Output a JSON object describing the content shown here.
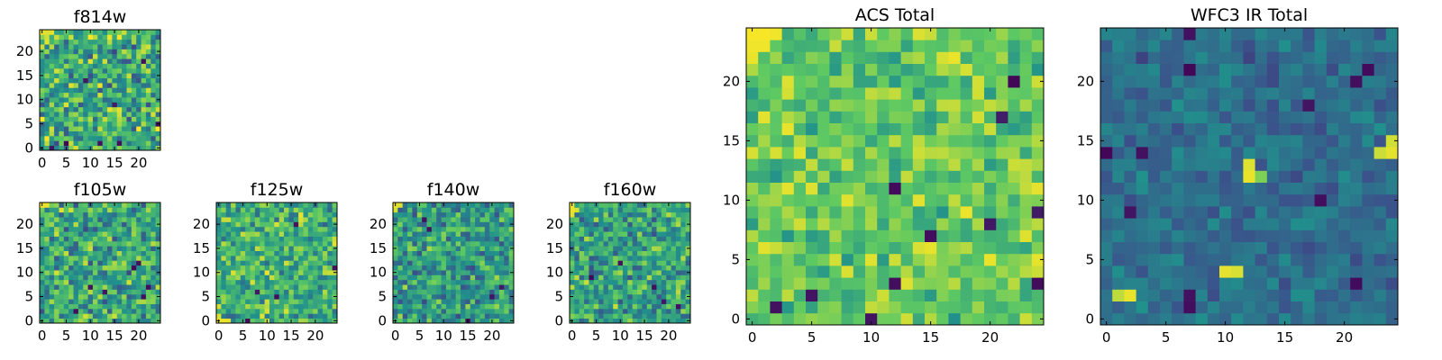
{
  "figure": {
    "colormap": "viridis",
    "colors": {
      "low": "#440154",
      "mid_low": "#3b528b",
      "mid": "#21918c",
      "mid_high": "#5ec962",
      "high": "#fde725"
    }
  },
  "chart_data": [
    {
      "type": "heatmap",
      "key": "f814w",
      "title": "f814w",
      "grid_size": [
        25,
        25
      ],
      "xlim": [
        0,
        25
      ],
      "ylim": [
        0,
        25
      ],
      "xticks": [
        0,
        5,
        10,
        15,
        20
      ],
      "yticks": [
        0,
        5,
        10,
        15,
        20
      ],
      "xtick_labels": [
        "0",
        "5",
        "10",
        "15",
        "20"
      ],
      "ytick_labels": [
        "0",
        "5",
        "10",
        "15",
        "20"
      ],
      "value_range": [
        0,
        1
      ],
      "mean_level": 0.62,
      "spread": 0.26,
      "seed": 814,
      "hotspots": [
        {
          "x": 0,
          "y": 24,
          "value": 0.97
        },
        {
          "x": 1,
          "y": 24,
          "value": 0.95
        },
        {
          "x": 2,
          "y": 24,
          "value": 0.96
        },
        {
          "x": 1,
          "y": 23,
          "value": 0.93
        },
        {
          "x": 3,
          "y": 23,
          "value": 0.92
        }
      ],
      "coldspots": [
        {
          "x": 5,
          "y": 1,
          "value": 0.02
        },
        {
          "x": 12,
          "y": 1,
          "value": 0.05
        },
        {
          "x": 16,
          "y": 1,
          "value": 0.04
        },
        {
          "x": 2,
          "y": 0,
          "value": 0.06
        },
        {
          "x": 24,
          "y": 5,
          "value": 0.03
        },
        {
          "x": 15,
          "y": 9,
          "value": 0.08
        },
        {
          "x": 21,
          "y": 18,
          "value": 0.05
        },
        {
          "x": 9,
          "y": 14,
          "value": 0.07
        }
      ]
    },
    {
      "type": "heatmap",
      "key": "f105w",
      "title": "f105w",
      "grid_size": [
        25,
        25
      ],
      "xlim": [
        0,
        25
      ],
      "ylim": [
        0,
        25
      ],
      "xticks": [
        0,
        5,
        10,
        15,
        20
      ],
      "yticks": [
        0,
        5,
        10,
        15,
        20
      ],
      "xtick_labels": [
        "0",
        "5",
        "10",
        "15",
        "20"
      ],
      "ytick_labels": [
        "0",
        "5",
        "10",
        "15",
        "20"
      ],
      "value_range": [
        0,
        1
      ],
      "mean_level": 0.6,
      "spread": 0.24,
      "seed": 105,
      "hotspots": [
        {
          "x": 0,
          "y": 24,
          "value": 0.98
        },
        {
          "x": 1,
          "y": 24,
          "value": 0.97
        },
        {
          "x": 4,
          "y": 23,
          "value": 0.95
        },
        {
          "x": 9,
          "y": 1,
          "value": 0.93
        },
        {
          "x": 15,
          "y": 1,
          "value": 0.92
        }
      ],
      "coldspots": [
        {
          "x": 19,
          "y": 11,
          "value": 0.02
        },
        {
          "x": 20,
          "y": 12,
          "value": 0.05
        },
        {
          "x": 22,
          "y": 7,
          "value": 0.04
        },
        {
          "x": 7,
          "y": 2,
          "value": 0.04
        },
        {
          "x": 10,
          "y": 7,
          "value": 0.06
        },
        {
          "x": 13,
          "y": 6,
          "value": 0.07
        },
        {
          "x": 21,
          "y": 5,
          "value": 0.05
        }
      ]
    },
    {
      "type": "heatmap",
      "key": "f125w",
      "title": "f125w",
      "grid_size": [
        25,
        25
      ],
      "xlim": [
        0,
        25
      ],
      "ylim": [
        0,
        25
      ],
      "xticks": [
        0,
        5,
        10,
        15,
        20
      ],
      "yticks": [
        0,
        5,
        10,
        15,
        20
      ],
      "xtick_labels": [
        "0",
        "5",
        "10",
        "15",
        "20"
      ],
      "ytick_labels": [
        "0",
        "5",
        "10",
        "15",
        "20"
      ],
      "value_range": [
        0,
        1
      ],
      "mean_level": 0.64,
      "spread": 0.22,
      "seed": 125,
      "hotspots": [
        {
          "x": 0,
          "y": 0,
          "value": 0.98
        },
        {
          "x": 1,
          "y": 0,
          "value": 0.97
        },
        {
          "x": 2,
          "y": 0,
          "value": 0.96
        },
        {
          "x": 0,
          "y": 1,
          "value": 0.95
        },
        {
          "x": 12,
          "y": 20,
          "value": 0.94
        }
      ],
      "coldspots": [
        {
          "x": 6,
          "y": 0,
          "value": 0.02
        },
        {
          "x": 12,
          "y": 5,
          "value": 0.04
        },
        {
          "x": 24,
          "y": 11,
          "value": 0.05
        },
        {
          "x": 16,
          "y": 20,
          "value": 0.06
        },
        {
          "x": 8,
          "y": 6,
          "value": 0.08
        }
      ]
    },
    {
      "type": "heatmap",
      "key": "f140w",
      "title": "f140w",
      "grid_size": [
        25,
        25
      ],
      "xlim": [
        0,
        25
      ],
      "ylim": [
        0,
        25
      ],
      "xticks": [
        0,
        5,
        10,
        15,
        20
      ],
      "yticks": [
        0,
        5,
        10,
        15,
        20
      ],
      "xtick_labels": [
        "0",
        "5",
        "10",
        "15",
        "20"
      ],
      "ytick_labels": [
        "0",
        "5",
        "10",
        "15",
        "20"
      ],
      "value_range": [
        0,
        1
      ],
      "mean_level": 0.55,
      "spread": 0.22,
      "seed": 140,
      "hotspots": [
        {
          "x": 0,
          "y": 24,
          "value": 0.97
        },
        {
          "x": 1,
          "y": 24,
          "value": 0.95
        },
        {
          "x": 0,
          "y": 23,
          "value": 0.93
        }
      ],
      "coldspots": [
        {
          "x": 15,
          "y": 0,
          "value": 0.03
        },
        {
          "x": 7,
          "y": 19,
          "value": 0.06
        },
        {
          "x": 6,
          "y": 21,
          "value": 0.05
        },
        {
          "x": 20,
          "y": 5,
          "value": 0.06
        },
        {
          "x": 22,
          "y": 7,
          "value": 0.08
        }
      ]
    },
    {
      "type": "heatmap",
      "key": "f160w",
      "title": "f160w",
      "grid_size": [
        25,
        25
      ],
      "xlim": [
        0,
        25
      ],
      "ylim": [
        0,
        25
      ],
      "xticks": [
        0,
        5,
        10,
        15,
        20
      ],
      "yticks": [
        0,
        5,
        10,
        15,
        20
      ],
      "xtick_labels": [
        "0",
        "5",
        "10",
        "15",
        "20"
      ],
      "ytick_labels": [
        "0",
        "5",
        "10",
        "15",
        "20"
      ],
      "value_range": [
        0,
        1
      ],
      "mean_level": 0.58,
      "spread": 0.22,
      "seed": 160,
      "hotspots": [
        {
          "x": 0,
          "y": 24,
          "value": 0.98
        },
        {
          "x": 0,
          "y": 23,
          "value": 0.97
        },
        {
          "x": 0,
          "y": 22,
          "value": 0.96
        },
        {
          "x": 1,
          "y": 23,
          "value": 0.94
        }
      ],
      "coldspots": [
        {
          "x": 4,
          "y": 9,
          "value": 0.02
        },
        {
          "x": 17,
          "y": 7,
          "value": 0.04
        },
        {
          "x": 22,
          "y": 3,
          "value": 0.05
        },
        {
          "x": 10,
          "y": 12,
          "value": 0.06
        },
        {
          "x": 19,
          "y": 4,
          "value": 0.07
        }
      ]
    },
    {
      "type": "heatmap",
      "key": "acs_total",
      "title": "ACS Total",
      "grid_size": [
        25,
        25
      ],
      "xlim": [
        0,
        25
      ],
      "ylim": [
        0,
        25
      ],
      "xticks": [
        0,
        5,
        10,
        15,
        20
      ],
      "yticks": [
        0,
        5,
        10,
        15,
        20
      ],
      "xtick_labels": [
        "0",
        "5",
        "10",
        "15",
        "20"
      ],
      "ytick_labels": [
        "0",
        "5",
        "10",
        "15",
        "20"
      ],
      "value_range": [
        0,
        1
      ],
      "mean_level": 0.74,
      "spread": 0.16,
      "seed": 901,
      "hotspots": [
        {
          "x": 0,
          "y": 24,
          "value": 0.99
        },
        {
          "x": 1,
          "y": 24,
          "value": 0.99
        },
        {
          "x": 2,
          "y": 24,
          "value": 0.98
        },
        {
          "x": 0,
          "y": 23,
          "value": 0.98
        },
        {
          "x": 1,
          "y": 23,
          "value": 0.98
        },
        {
          "x": 0,
          "y": 22,
          "value": 0.97
        },
        {
          "x": 3,
          "y": 11,
          "value": 0.96
        },
        {
          "x": 20,
          "y": 5,
          "value": 0.97
        },
        {
          "x": 13,
          "y": 3,
          "value": 0.95
        }
      ],
      "coldspots": [
        {
          "x": 22,
          "y": 20,
          "value": 0.02
        },
        {
          "x": 12,
          "y": 11,
          "value": 0.03
        },
        {
          "x": 15,
          "y": 7,
          "value": 0.04
        },
        {
          "x": 24,
          "y": 3,
          "value": 0.03
        },
        {
          "x": 2,
          "y": 1,
          "value": 0.05
        },
        {
          "x": 5,
          "y": 2,
          "value": 0.06
        },
        {
          "x": 12,
          "y": 3,
          "value": 0.04
        },
        {
          "x": 24,
          "y": 9,
          "value": 0.08
        },
        {
          "x": 20,
          "y": 8,
          "value": 0.07
        },
        {
          "x": 10,
          "y": 0,
          "value": 0.06
        },
        {
          "x": 21,
          "y": 17,
          "value": 0.09
        }
      ]
    },
    {
      "type": "heatmap",
      "key": "wfc3_ir_total",
      "title": "WFC3 IR Total",
      "grid_size": [
        25,
        25
      ],
      "xlim": [
        0,
        25
      ],
      "ylim": [
        0,
        25
      ],
      "xticks": [
        0,
        5,
        10,
        15,
        20
      ],
      "yticks": [
        0,
        5,
        10,
        15,
        20
      ],
      "xtick_labels": [
        "0",
        "5",
        "10",
        "15",
        "20"
      ],
      "ytick_labels": [
        "0",
        "5",
        "10",
        "15",
        "20"
      ],
      "value_range": [
        0,
        1
      ],
      "mean_level": 0.36,
      "spread": 0.1,
      "seed": 302,
      "hotspots": [
        {
          "x": 12,
          "y": 12,
          "value": 0.97
        },
        {
          "x": 12,
          "y": 13,
          "value": 0.95
        },
        {
          "x": 13,
          "y": 12,
          "value": 0.8
        },
        {
          "x": 10,
          "y": 4,
          "value": 0.96
        },
        {
          "x": 11,
          "y": 4,
          "value": 0.94
        },
        {
          "x": 1,
          "y": 2,
          "value": 0.9
        },
        {
          "x": 2,
          "y": 2,
          "value": 0.97
        },
        {
          "x": 24,
          "y": 14,
          "value": 0.96
        },
        {
          "x": 24,
          "y": 15,
          "value": 0.93
        },
        {
          "x": 23,
          "y": 14,
          "value": 0.92
        }
      ],
      "coldspots": [
        {
          "x": 7,
          "y": 21,
          "value": 0.02
        },
        {
          "x": 22,
          "y": 21,
          "value": 0.03
        },
        {
          "x": 21,
          "y": 20,
          "value": 0.04
        },
        {
          "x": 0,
          "y": 14,
          "value": 0.02
        },
        {
          "x": 3,
          "y": 14,
          "value": 0.05
        },
        {
          "x": 18,
          "y": 10,
          "value": 0.04
        },
        {
          "x": 2,
          "y": 9,
          "value": 0.06
        },
        {
          "x": 21,
          "y": 3,
          "value": 0.03
        },
        {
          "x": 7,
          "y": 2,
          "value": 0.05
        },
        {
          "x": 7,
          "y": 1,
          "value": 0.04
        },
        {
          "x": 17,
          "y": 18,
          "value": 0.06
        },
        {
          "x": 7,
          "y": 24,
          "value": 0.05
        }
      ]
    }
  ]
}
